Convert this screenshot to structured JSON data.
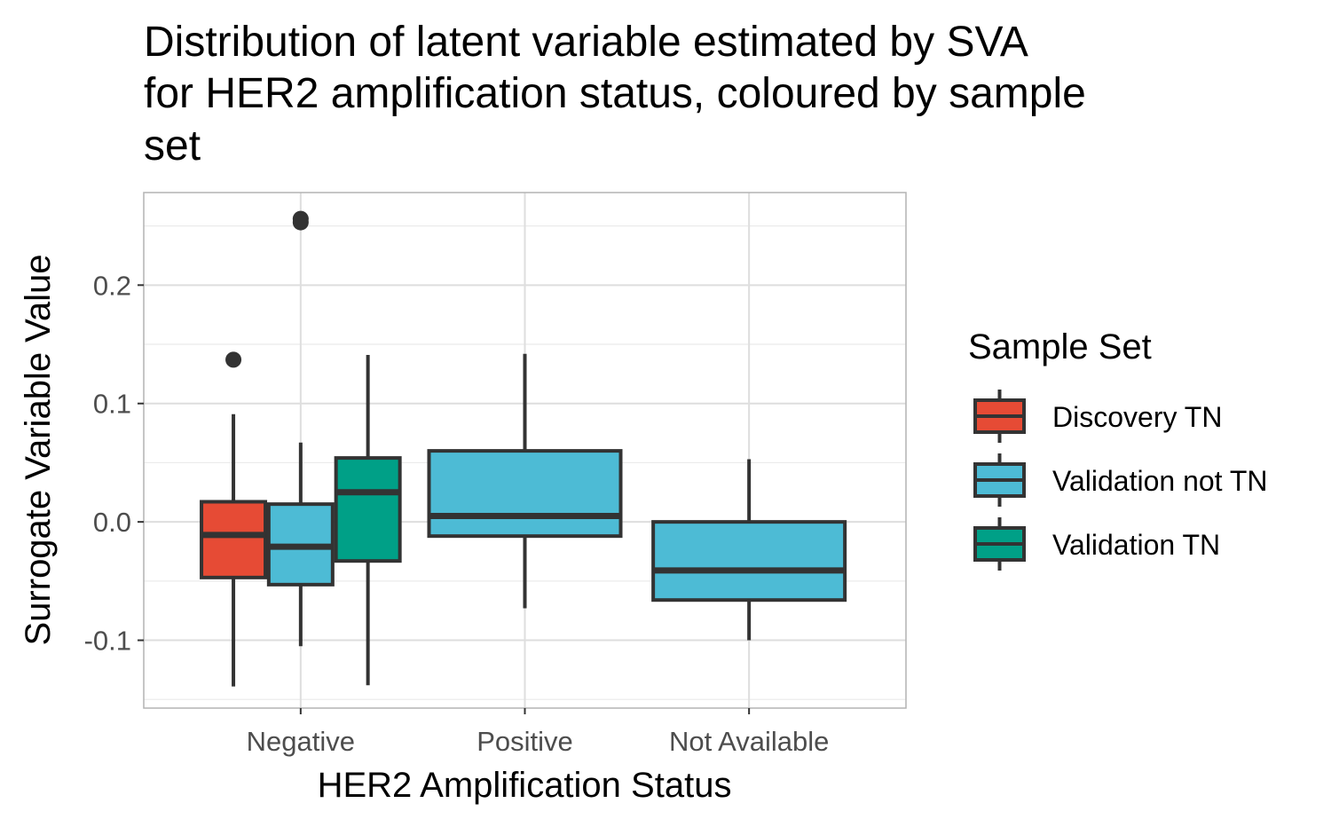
{
  "chart_data": {
    "type": "boxplot",
    "title": "Distribution of latent variable estimated by SVA for HER2 amplification status, coloured by sample set",
    "title_lines": [
      "Distribution of latent variable estimated by SVA",
      "for HER2 amplification status, coloured by sample",
      "set"
    ],
    "xlabel": "HER2 Amplification Status",
    "ylabel": "Surrogate Variable Value",
    "categories": [
      "Negative",
      "Positive",
      "Not Available"
    ],
    "ylim": [
      -0.1573,
      0.2782
    ],
    "yticks": [
      -0.1,
      0.0,
      0.1,
      0.2
    ],
    "ytick_labels": [
      "-0.1",
      "0.0",
      "0.1",
      "0.2"
    ],
    "grid": true,
    "legend": {
      "title": "Sample Set",
      "placement": "right",
      "entries": [
        {
          "label": "Discovery TN",
          "color": "#E64B35"
        },
        {
          "label": "Validation not TN",
          "color": "#4DBBD5"
        },
        {
          "label": "Validation TN",
          "color": "#00A087"
        }
      ]
    },
    "series": [
      {
        "name": "Discovery TN",
        "color": "#E64B35",
        "boxes": [
          {
            "category": "Negative",
            "whisker_low": -0.139,
            "q1": -0.047,
            "median": -0.011,
            "q3": 0.017,
            "whisker_high": 0.091,
            "outliers": [
              0.137
            ]
          }
        ]
      },
      {
        "name": "Validation not TN",
        "color": "#4DBBD5",
        "boxes": [
          {
            "category": "Negative",
            "whisker_low": -0.105,
            "q1": -0.053,
            "median": -0.021,
            "q3": 0.015,
            "whisker_high": 0.067,
            "outliers": [
              0.256,
              0.253
            ]
          },
          {
            "category": "Positive",
            "whisker_low": -0.073,
            "q1": -0.012,
            "median": 0.005,
            "q3": 0.06,
            "whisker_high": 0.142,
            "outliers": []
          },
          {
            "category": "Not Available",
            "whisker_low": -0.1,
            "q1": -0.066,
            "median": -0.041,
            "q3": 0.0,
            "whisker_high": 0.053,
            "outliers": []
          }
        ]
      },
      {
        "name": "Validation TN",
        "color": "#00A087",
        "boxes": [
          {
            "category": "Negative",
            "whisker_low": -0.138,
            "q1": -0.033,
            "median": 0.025,
            "q3": 0.054,
            "whisker_high": 0.141,
            "outliers": []
          }
        ]
      }
    ]
  }
}
